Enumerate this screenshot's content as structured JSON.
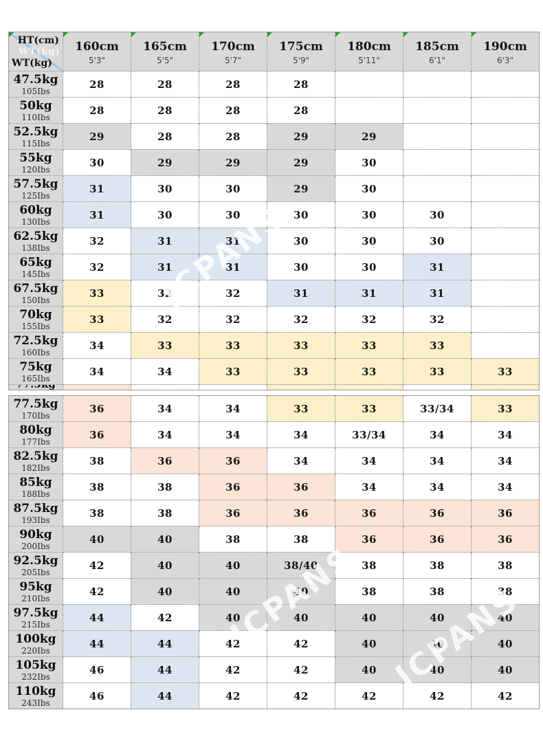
{
  "watermark": {
    "text": "JCPANS",
    "corner_text": "WT(kg)"
  },
  "table": {
    "corner": {
      "top_label": "HT(cm)",
      "bottom_label": "WT(kg)"
    },
    "columns": [
      {
        "cm": "160cm",
        "ft": "5'3\""
      },
      {
        "cm": "165cm",
        "ft": "5'5\""
      },
      {
        "cm": "170cm",
        "ft": "5'7\""
      },
      {
        "cm": "175cm",
        "ft": "5'9\""
      },
      {
        "cm": "180cm",
        "ft": "5'11\""
      },
      {
        "cm": "185cm",
        "ft": "6'1\""
      },
      {
        "cm": "190cm",
        "ft": "6'3\""
      }
    ],
    "colors": {
      "W": "#ffffff",
      "G": "#d9d9d9",
      "B": "#dce6f1",
      "Y": "#fdf0c8",
      "P": "#fce4d6",
      "header_gray": "#d9d9d9",
      "flag_green": "#1fa32b",
      "diagonal_blue": "#9dc3e6"
    },
    "rows": [
      {
        "kg": "47.5kg",
        "lbs": "105Ibs",
        "cells": [
          [
            "28",
            "W"
          ],
          [
            "28",
            "W"
          ],
          [
            "28",
            "W"
          ],
          [
            "28",
            "W"
          ],
          [
            "",
            "W"
          ],
          [
            "",
            "W"
          ],
          [
            "",
            "W"
          ]
        ]
      },
      {
        "kg": "50kg",
        "lbs": "110Ibs",
        "cells": [
          [
            "28",
            "W"
          ],
          [
            "28",
            "W"
          ],
          [
            "28",
            "W"
          ],
          [
            "28",
            "W"
          ],
          [
            "",
            "W"
          ],
          [
            "",
            "W"
          ],
          [
            "",
            "W"
          ]
        ]
      },
      {
        "kg": "52.5kg",
        "lbs": "115Ibs",
        "cells": [
          [
            "29",
            "G"
          ],
          [
            "28",
            "W"
          ],
          [
            "28",
            "W"
          ],
          [
            "29",
            "G"
          ],
          [
            "29",
            "G"
          ],
          [
            "",
            "W"
          ],
          [
            "",
            "W"
          ]
        ]
      },
      {
        "kg": "55kg",
        "lbs": "120Ibs",
        "cells": [
          [
            "30",
            "W"
          ],
          [
            "29",
            "G"
          ],
          [
            "29",
            "G"
          ],
          [
            "29",
            "G"
          ],
          [
            "30",
            "W"
          ],
          [
            "",
            "W"
          ],
          [
            "",
            "W"
          ]
        ]
      },
      {
        "kg": "57.5kg",
        "lbs": "125Ibs",
        "cells": [
          [
            "31",
            "B"
          ],
          [
            "30",
            "W"
          ],
          [
            "30",
            "W"
          ],
          [
            "29",
            "G"
          ],
          [
            "30",
            "W"
          ],
          [
            "",
            "W"
          ],
          [
            "",
            "W"
          ]
        ]
      },
      {
        "kg": "60kg",
        "lbs": "130Ibs",
        "cells": [
          [
            "31",
            "B"
          ],
          [
            "30",
            "W"
          ],
          [
            "30",
            "W"
          ],
          [
            "30",
            "W"
          ],
          [
            "30",
            "W"
          ],
          [
            "30",
            "W"
          ],
          [
            "",
            "W"
          ]
        ]
      },
      {
        "kg": "62.5kg",
        "lbs": "138Ibs",
        "cells": [
          [
            "32",
            "W"
          ],
          [
            "31",
            "B"
          ],
          [
            "31",
            "B"
          ],
          [
            "30",
            "W"
          ],
          [
            "30",
            "W"
          ],
          [
            "30",
            "W"
          ],
          [
            "",
            "W"
          ]
        ]
      },
      {
        "kg": "65kg",
        "lbs": "145Ibs",
        "cells": [
          [
            "32",
            "W"
          ],
          [
            "31",
            "B"
          ],
          [
            "31",
            "B"
          ],
          [
            "30",
            "W"
          ],
          [
            "30",
            "W"
          ],
          [
            "31",
            "B"
          ],
          [
            "",
            "W"
          ]
        ]
      },
      {
        "kg": "67.5kg",
        "lbs": "150Ibs",
        "cells": [
          [
            "33",
            "Y"
          ],
          [
            "32",
            "W"
          ],
          [
            "32",
            "W"
          ],
          [
            "31",
            "B"
          ],
          [
            "31",
            "B"
          ],
          [
            "31",
            "B"
          ],
          [
            "",
            "W"
          ]
        ]
      },
      {
        "kg": "70kg",
        "lbs": "155Ibs",
        "cells": [
          [
            "33",
            "Y"
          ],
          [
            "32",
            "W"
          ],
          [
            "32",
            "W"
          ],
          [
            "32",
            "W"
          ],
          [
            "32",
            "W"
          ],
          [
            "32",
            "W"
          ],
          [
            "",
            "W"
          ]
        ]
      },
      {
        "kg": "72.5kg",
        "lbs": "160Ibs",
        "cells": [
          [
            "34",
            "W"
          ],
          [
            "33",
            "Y"
          ],
          [
            "33",
            "Y"
          ],
          [
            "33",
            "Y"
          ],
          [
            "33",
            "Y"
          ],
          [
            "33",
            "Y"
          ],
          [
            "",
            "W"
          ]
        ]
      },
      {
        "kg": "75kg",
        "lbs": "165Ibs",
        "cells": [
          [
            "34",
            "W"
          ],
          [
            "34",
            "W"
          ],
          [
            "33",
            "Y"
          ],
          [
            "33",
            "Y"
          ],
          [
            "33",
            "Y"
          ],
          [
            "33",
            "Y"
          ],
          [
            "33",
            "Y"
          ]
        ]
      },
      {
        "kg": "77.5kg",
        "lbs": "170Ibs",
        "cells": [
          [
            "36",
            "P"
          ],
          [
            "34",
            "W"
          ],
          [
            "34",
            "W"
          ],
          [
            "33",
            "Y"
          ],
          [
            "33",
            "Y"
          ],
          [
            "33/34",
            "W"
          ],
          [
            "33",
            "Y"
          ]
        ]
      },
      {
        "kg": "80kg",
        "lbs": "177Ibs",
        "cells": [
          [
            "36",
            "P"
          ],
          [
            "34",
            "W"
          ],
          [
            "34",
            "W"
          ],
          [
            "34",
            "W"
          ],
          [
            "33/34",
            "W"
          ],
          [
            "34",
            "W"
          ],
          [
            "34",
            "W"
          ]
        ]
      },
      {
        "kg": "82.5kg",
        "lbs": "182Ibs",
        "cells": [
          [
            "38",
            "W"
          ],
          [
            "36",
            "P"
          ],
          [
            "36",
            "P"
          ],
          [
            "34",
            "W"
          ],
          [
            "34",
            "W"
          ],
          [
            "34",
            "W"
          ],
          [
            "34",
            "W"
          ]
        ]
      },
      {
        "kg": "85kg",
        "lbs": "188Ibs",
        "cells": [
          [
            "38",
            "W"
          ],
          [
            "38",
            "W"
          ],
          [
            "36",
            "P"
          ],
          [
            "36",
            "P"
          ],
          [
            "34",
            "W"
          ],
          [
            "34",
            "W"
          ],
          [
            "34",
            "W"
          ]
        ]
      },
      {
        "kg": "87.5kg",
        "lbs": "193Ibs",
        "cells": [
          [
            "38",
            "W"
          ],
          [
            "38",
            "W"
          ],
          [
            "36",
            "P"
          ],
          [
            "36",
            "P"
          ],
          [
            "36",
            "P"
          ],
          [
            "36",
            "P"
          ],
          [
            "36",
            "P"
          ]
        ]
      },
      {
        "kg": "90kg",
        "lbs": "200Ibs",
        "cells": [
          [
            "40",
            "G"
          ],
          [
            "40",
            "G"
          ],
          [
            "38",
            "W"
          ],
          [
            "38",
            "W"
          ],
          [
            "36",
            "P"
          ],
          [
            "36",
            "P"
          ],
          [
            "36",
            "P"
          ]
        ]
      },
      {
        "kg": "92.5kg",
        "lbs": "205Ibs",
        "cells": [
          [
            "42",
            "W"
          ],
          [
            "40",
            "G"
          ],
          [
            "40",
            "G"
          ],
          [
            "38/40",
            "G"
          ],
          [
            "38",
            "W"
          ],
          [
            "38",
            "W"
          ],
          [
            "38",
            "W"
          ]
        ]
      },
      {
        "kg": "95kg",
        "lbs": "210Ibs",
        "cells": [
          [
            "42",
            "W"
          ],
          [
            "40",
            "G"
          ],
          [
            "40",
            "G"
          ],
          [
            "40",
            "G"
          ],
          [
            "38",
            "W"
          ],
          [
            "38",
            "W"
          ],
          [
            "38",
            "W"
          ]
        ]
      },
      {
        "kg": "97.5kg",
        "lbs": "215Ibs",
        "cells": [
          [
            "44",
            "B"
          ],
          [
            "42",
            "W"
          ],
          [
            "40",
            "G"
          ],
          [
            "40",
            "G"
          ],
          [
            "40",
            "G"
          ],
          [
            "40",
            "G"
          ],
          [
            "40",
            "G"
          ]
        ]
      },
      {
        "kg": "100kg",
        "lbs": "220Ibs",
        "cells": [
          [
            "44",
            "B"
          ],
          [
            "44",
            "B"
          ],
          [
            "42",
            "W"
          ],
          [
            "42",
            "W"
          ],
          [
            "40",
            "G"
          ],
          [
            "40",
            "G"
          ],
          [
            "40",
            "G"
          ]
        ]
      },
      {
        "kg": "105kg",
        "lbs": "232Ibs",
        "cells": [
          [
            "46",
            "W"
          ],
          [
            "44",
            "B"
          ],
          [
            "42",
            "W"
          ],
          [
            "42",
            "W"
          ],
          [
            "40",
            "G"
          ],
          [
            "40",
            "G"
          ],
          [
            "40",
            "G"
          ]
        ]
      },
      {
        "kg": "110kg",
        "lbs": "243Ibs",
        "cells": [
          [
            "46",
            "W"
          ],
          [
            "44",
            "B"
          ],
          [
            "42",
            "W"
          ],
          [
            "42",
            "W"
          ],
          [
            "42",
            "W"
          ],
          [
            "42",
            "W"
          ],
          [
            "42",
            "W"
          ]
        ]
      }
    ],
    "clipped_row": {
      "label": "77.5kg",
      "colors": [
        "P",
        "W",
        "W",
        "Y",
        "Y",
        "W",
        "Y"
      ]
    }
  }
}
